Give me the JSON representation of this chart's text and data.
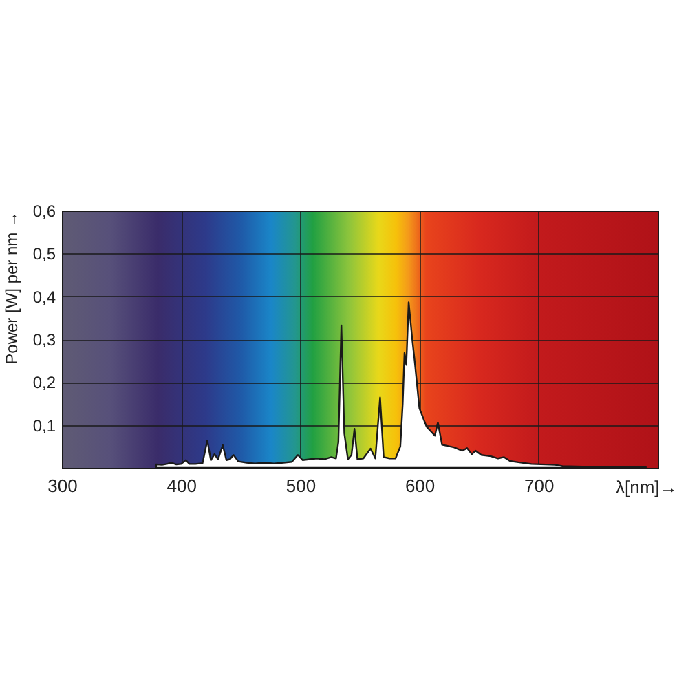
{
  "chart_data": {
    "type": "area",
    "xlabel": "λ[nm]→",
    "ylabel": "Power [W] per nm →",
    "x": [
      379,
      384,
      388,
      392,
      396,
      400,
      404,
      407,
      412,
      418,
      422,
      425,
      428,
      431,
      435,
      438,
      441,
      444,
      448,
      455,
      462,
      470,
      478,
      486,
      493,
      498,
      502,
      508,
      514,
      520,
      526,
      530,
      532,
      534.5,
      537,
      540,
      543,
      545.5,
      548,
      553,
      559,
      563,
      567,
      570,
      575,
      580,
      584,
      586,
      587.5,
      589,
      591,
      594,
      596,
      600,
      606,
      613,
      615.5,
      619,
      629,
      636,
      640,
      644,
      647,
      652,
      660,
      666,
      671,
      676,
      683,
      694,
      714,
      720,
      737,
      760,
      775,
      790
    ],
    "values": [
      0.008,
      0.007,
      0.009,
      0.012,
      0.008,
      0.009,
      0.018,
      0.009,
      0.009,
      0.011,
      0.064,
      0.018,
      0.032,
      0.02,
      0.053,
      0.018,
      0.02,
      0.03,
      0.015,
      0.012,
      0.01,
      0.012,
      0.01,
      0.012,
      0.014,
      0.03,
      0.018,
      0.02,
      0.022,
      0.02,
      0.025,
      0.022,
      0.06,
      0.332,
      0.08,
      0.02,
      0.03,
      0.091,
      0.02,
      0.022,
      0.045,
      0.022,
      0.164,
      0.025,
      0.022,
      0.022,
      0.05,
      0.15,
      0.268,
      0.24,
      0.386,
      0.3,
      0.25,
      0.139,
      0.096,
      0.075,
      0.106,
      0.054,
      0.048,
      0.04,
      0.046,
      0.032,
      0.04,
      0.03,
      0.027,
      0.022,
      0.025,
      0.016,
      0.013,
      0.009,
      0.007,
      0.004,
      0.003,
      0.003,
      0.002,
      0.002
    ],
    "color": "#ffffff",
    "xlim": [
      300,
      800
    ],
    "xticks": [
      300,
      400,
      500,
      600,
      700
    ],
    "ylim": [
      0,
      0.6
    ],
    "yticks": [
      {
        "value": 0.1,
        "label": "0,1"
      },
      {
        "value": 0.2,
        "label": "0,2"
      },
      {
        "value": 0.3,
        "label": "0,3"
      },
      {
        "value": 0.4,
        "label": "0,4"
      },
      {
        "value": 0.5,
        "label": "0,5"
      },
      {
        "value": 0.6,
        "label": "0,6"
      }
    ],
    "grid": true
  }
}
